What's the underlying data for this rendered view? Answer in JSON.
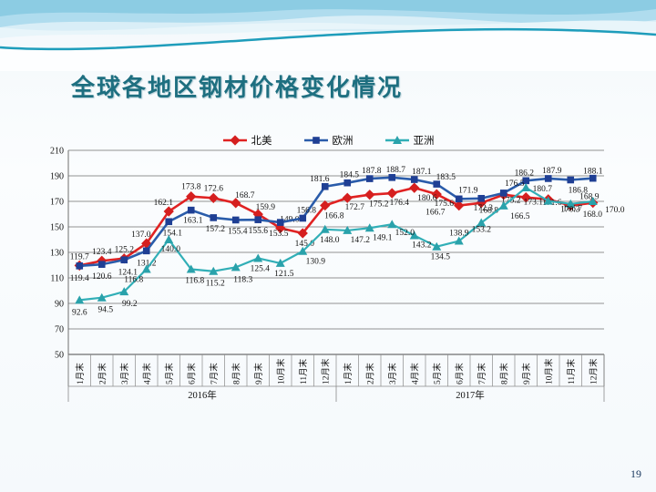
{
  "slide": {
    "title": "全球各地区钢材价格变化情况",
    "page_number": "19"
  },
  "chart_data": {
    "type": "line",
    "title": "",
    "legend_position": "top",
    "grid": true,
    "y_axis": {
      "min": 50,
      "max": 210,
      "step": 20,
      "ticks": [
        50,
        70,
        90,
        110,
        130,
        150,
        170,
        190,
        210
      ]
    },
    "x_axis": {
      "month_labels": [
        "1月末",
        "2月末",
        "3月末",
        "4月末",
        "5月末",
        "6月末",
        "7月末",
        "8月末",
        "9月末",
        "10月末",
        "11月末",
        "12月末"
      ],
      "year_groups": [
        {
          "label": "2016年"
        },
        {
          "label": "2017年"
        }
      ]
    },
    "series": [
      {
        "name": "北美",
        "color": "#e02222",
        "marker": "diamond",
        "marker_color": "#d51f1f",
        "values": [
          119.7,
          123.4,
          125.2,
          137.0,
          162.1,
          173.8,
          172.6,
          168.7,
          159.9,
          149.0,
          145.0,
          166.8,
          172.7,
          175.2,
          176.4,
          180.6,
          175.6,
          166.7,
          168.8,
          175.2,
          173.1,
          171.6,
          166.7,
          168.9
        ]
      },
      {
        "name": "欧洲",
        "color": "#2a5caa",
        "marker": "square",
        "marker_color": "#1f3f94",
        "values": [
          119.4,
          120.6,
          124.1,
          131.2,
          154.1,
          163.1,
          157.2,
          155.4,
          155.6,
          153.5,
          156.8,
          181.6,
          184.5,
          187.8,
          188.7,
          187.1,
          183.5,
          171.9,
          172.3,
          176.5,
          186.2,
          187.9,
          186.8,
          188.1
        ]
      },
      {
        "name": "亚洲",
        "color": "#31afb7",
        "marker": "triangle",
        "marker_color": "#2aa2ab",
        "values": [
          92.6,
          94.5,
          99.2,
          116.8,
          140.0,
          116.8,
          115.2,
          118.3,
          125.4,
          121.5,
          130.9,
          148.0,
          147.2,
          149.1,
          152.0,
          143.2,
          134.5,
          138.9,
          153.2,
          166.5,
          180.7,
          170.3,
          168.0,
          170.0
        ]
      }
    ]
  }
}
